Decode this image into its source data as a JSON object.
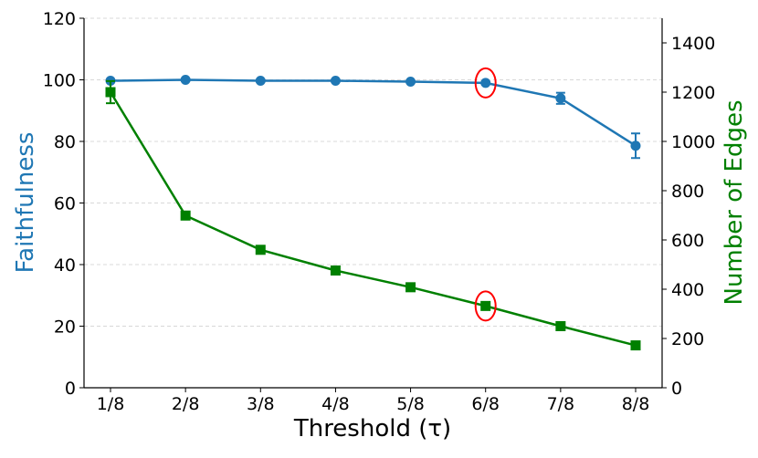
{
  "chart_data": {
    "type": "line",
    "xlabel": "Threshold (τ)",
    "categories": [
      "1/8",
      "2/8",
      "3/8",
      "4/8",
      "5/8",
      "6/8",
      "7/8",
      "8/8"
    ],
    "y_left": {
      "label": "Faithfulness",
      "range": [
        0,
        120
      ],
      "ticks": [
        0,
        20,
        40,
        60,
        80,
        100,
        120
      ],
      "color": "#1f77b4"
    },
    "y_right": {
      "label": "Number of Edges",
      "range": [
        0,
        1500
      ],
      "ticks": [
        0,
        200,
        400,
        600,
        800,
        1000,
        1200,
        1400
      ],
      "color": "#008000"
    },
    "grid": "horizontal dashed",
    "series": [
      {
        "axis": "left",
        "marker": "circle",
        "color": "#1f77b4",
        "values": [
          99.7,
          100.0,
          99.7,
          99.7,
          99.4,
          99.0,
          94.0,
          78.6
        ],
        "errors": [
          0.5,
          0.4,
          0.4,
          0.4,
          0.4,
          0.4,
          1.8,
          4.0
        ]
      },
      {
        "axis": "right",
        "marker": "square",
        "color": "#008000",
        "values": [
          1200,
          699,
          560,
          476,
          408,
          332,
          250,
          172
        ],
        "errors": [
          45,
          12,
          6,
          6,
          6,
          6,
          6,
          6
        ]
      }
    ],
    "annotations": [
      {
        "type": "ellipse",
        "category": "6/8",
        "series": 0,
        "color": "#ff0000"
      },
      {
        "type": "ellipse",
        "category": "6/8",
        "series": 1,
        "color": "#ff0000"
      }
    ]
  }
}
